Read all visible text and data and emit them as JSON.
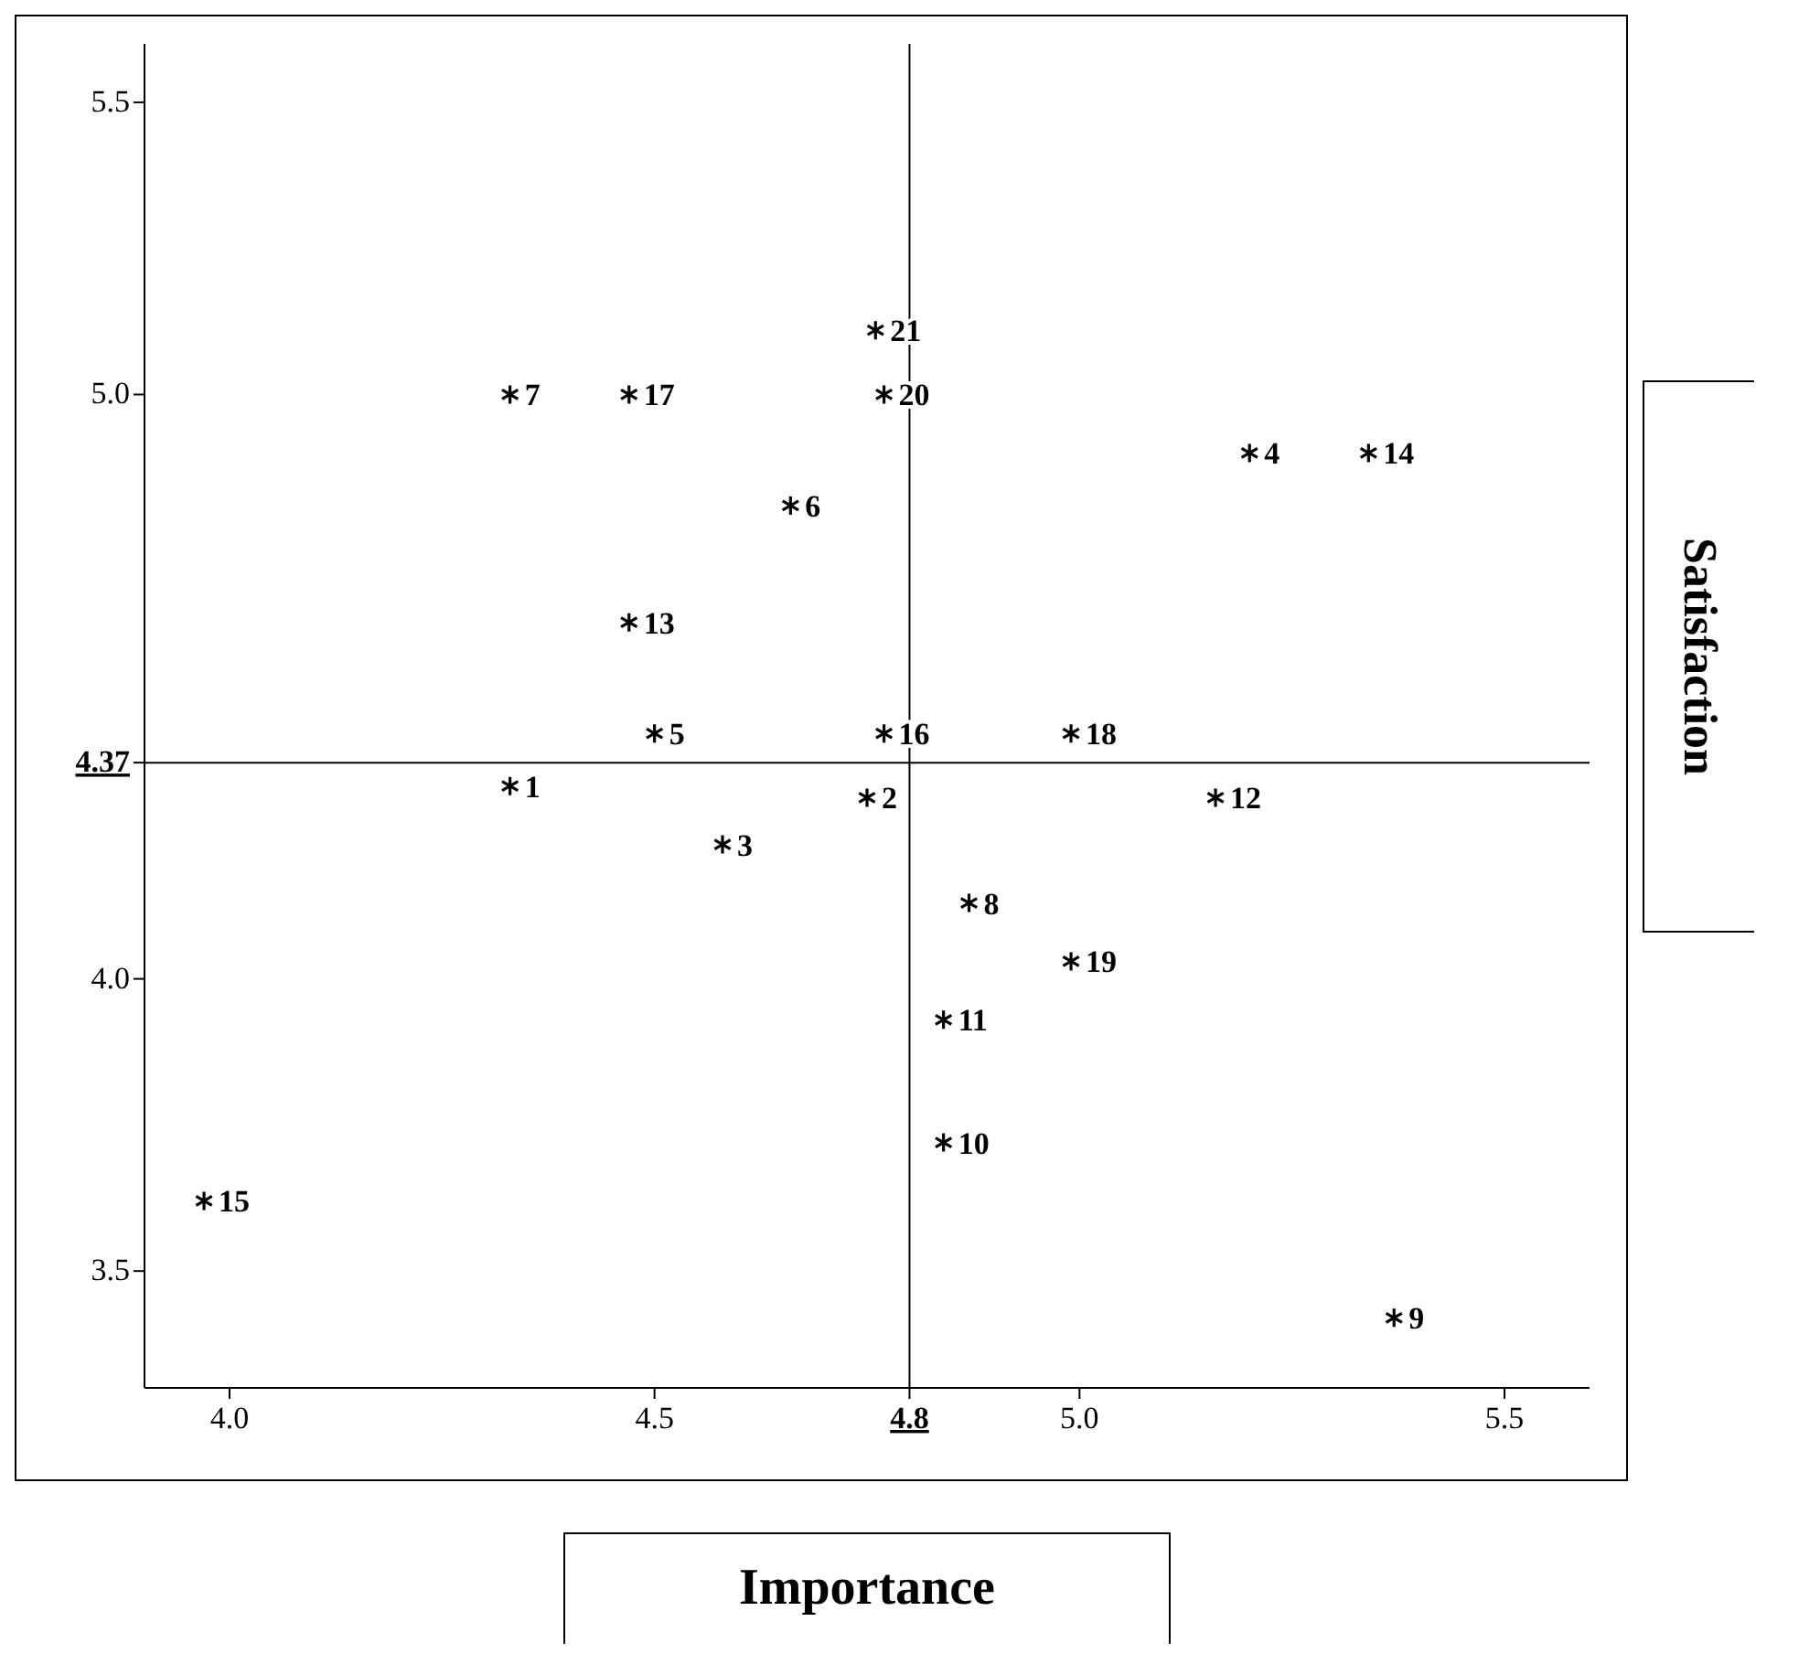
{
  "chart_data": {
    "type": "scatter",
    "xlabel": "Importance",
    "ylabel": "Satisfaction",
    "xlim": [
      3.9,
      5.6
    ],
    "ylim": [
      3.3,
      5.6
    ],
    "xticks": [
      {
        "value": 4,
        "label": "4.0"
      },
      4.5,
      4.8,
      {
        "value": 5,
        "label": "5.0"
      },
      5.5
    ],
    "yticks": [
      5.5,
      {
        "value": 5,
        "label": "5.0"
      },
      4.37,
      {
        "value": 4,
        "label": "4.0"
      },
      3.5
    ],
    "ref_lines": [
      {
        "axis": "x",
        "value": 4.8,
        "color": "#000000"
      },
      {
        "axis": "y",
        "value": 4.37,
        "color": "#000000"
      }
    ],
    "grid": false,
    "marker": "cross",
    "series": [
      {
        "color": "#000000",
        "x": [
          4.33,
          4.75,
          4.58,
          5.2,
          4.5,
          4.66,
          4.33,
          4.87,
          5.37,
          4.84,
          4.84,
          5.16,
          4.47,
          5.34,
          3.97,
          4.77,
          4.47,
          4.99,
          4.99,
          4.77,
          4.76
        ],
        "values": [
          4.33,
          4.31,
          4.23,
          4.9,
          4.42,
          4.81,
          5.0,
          4.13,
          3.42,
          3.72,
          3.93,
          4.31,
          4.61,
          4.9,
          3.62,
          4.42,
          5.0,
          4.42,
          4.03,
          5.0,
          5.11
        ]
      }
    ],
    "annotations": [
      {
        "text": "1",
        "x": 4.33,
        "y": 4.33
      },
      {
        "text": "2",
        "x": 4.75,
        "y": 4.31
      },
      {
        "text": "3",
        "x": 4.58,
        "y": 4.23
      },
      {
        "text": "4",
        "x": 5.2,
        "y": 4.9
      },
      {
        "text": "5",
        "x": 4.5,
        "y": 4.42
      },
      {
        "text": "6",
        "x": 4.66,
        "y": 4.81
      },
      {
        "text": "7",
        "x": 4.33,
        "y": 5.0
      },
      {
        "text": "8",
        "x": 4.87,
        "y": 4.13
      },
      {
        "text": "9",
        "x": 5.37,
        "y": 3.42
      },
      {
        "text": "10",
        "x": 4.84,
        "y": 3.72
      },
      {
        "text": "11",
        "x": 4.84,
        "y": 3.93
      },
      {
        "text": "12",
        "x": 5.16,
        "y": 4.31
      },
      {
        "text": "13",
        "x": 4.47,
        "y": 4.61
      },
      {
        "text": "14",
        "x": 5.34,
        "y": 4.9
      },
      {
        "text": "15",
        "x": 3.97,
        "y": 3.62
      },
      {
        "text": "16",
        "x": 4.77,
        "y": 4.42
      },
      {
        "text": "17",
        "x": 4.47,
        "y": 5.0
      },
      {
        "text": "18",
        "x": 4.99,
        "y": 4.42
      },
      {
        "text": "19",
        "x": 4.99,
        "y": 4.03
      },
      {
        "text": "20",
        "x": 4.77,
        "y": 5.0
      },
      {
        "text": "21",
        "x": 4.76,
        "y": 5.11
      }
    ]
  }
}
